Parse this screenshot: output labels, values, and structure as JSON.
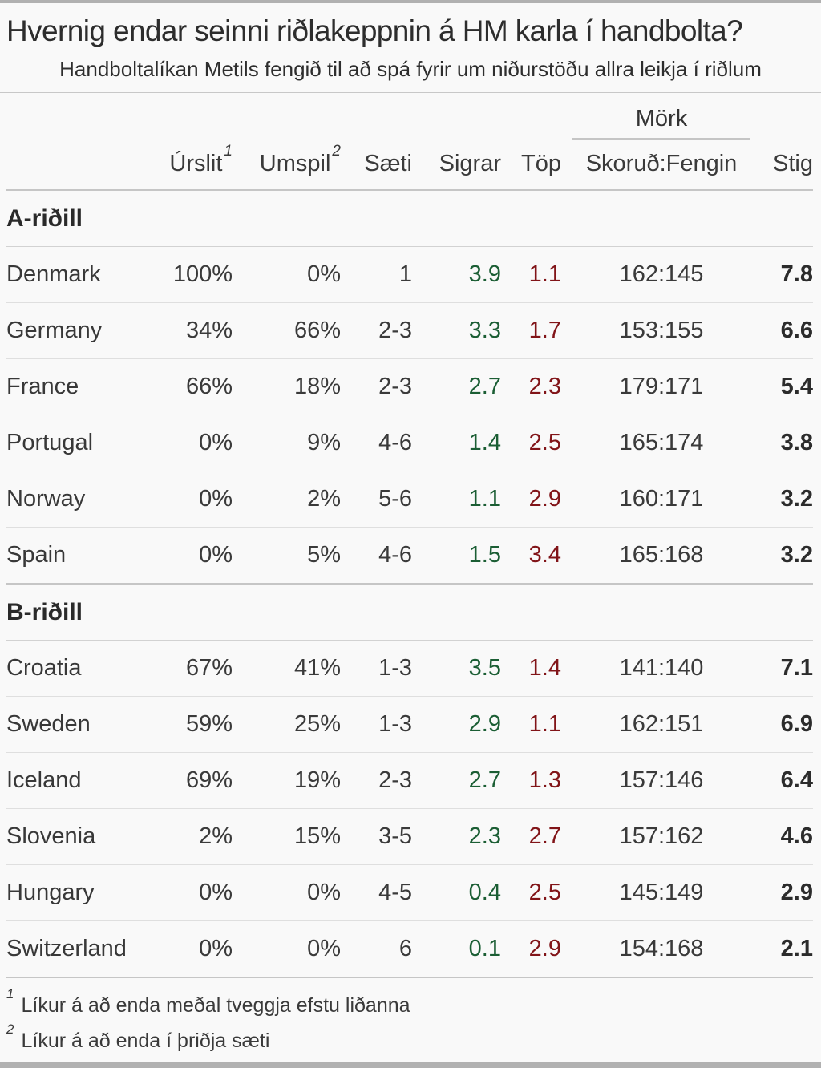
{
  "header": {
    "title": "Hvernig endar seinni riðlakeppnin á HM karla í handbolta?",
    "subtitle": "Handboltalíkan Metils fengið til að spá fyrir um niðurstöðu allra leikja í riðlum"
  },
  "chart_data": {
    "type": "table",
    "group_header": "Mörk",
    "columns": [
      {
        "label": ""
      },
      {
        "label": "Úrslit",
        "sup": "1"
      },
      {
        "label": "Umspil",
        "sup": "2"
      },
      {
        "label": "Sæti"
      },
      {
        "label": "Sigrar"
      },
      {
        "label": "Töp"
      },
      {
        "label": "Skoruð:Fengin"
      },
      {
        "label": "Stig"
      }
    ],
    "sections": [
      {
        "name": "A-riðill",
        "rows": [
          [
            "Denmark",
            "100%",
            "0%",
            "1",
            "3.9",
            "1.1",
            "162:145",
            "7.8"
          ],
          [
            "Germany",
            "34%",
            "66%",
            "2-3",
            "3.3",
            "1.7",
            "153:155",
            "6.6"
          ],
          [
            "France",
            "66%",
            "18%",
            "2-3",
            "2.7",
            "2.3",
            "179:171",
            "5.4"
          ],
          [
            "Portugal",
            "0%",
            "9%",
            "4-6",
            "1.4",
            "2.5",
            "165:174",
            "3.8"
          ],
          [
            "Norway",
            "0%",
            "2%",
            "5-6",
            "1.1",
            "2.9",
            "160:171",
            "3.2"
          ],
          [
            "Spain",
            "0%",
            "5%",
            "4-6",
            "1.5",
            "3.4",
            "165:168",
            "3.2"
          ]
        ]
      },
      {
        "name": "B-riðill",
        "rows": [
          [
            "Croatia",
            "67%",
            "41%",
            "1-3",
            "3.5",
            "1.4",
            "141:140",
            "7.1"
          ],
          [
            "Sweden",
            "59%",
            "25%",
            "1-3",
            "2.9",
            "1.1",
            "162:151",
            "6.9"
          ],
          [
            "Iceland",
            "69%",
            "19%",
            "2-3",
            "2.7",
            "1.3",
            "157:146",
            "6.4"
          ],
          [
            "Slovenia",
            "2%",
            "15%",
            "3-5",
            "2.3",
            "2.7",
            "157:162",
            "4.6"
          ],
          [
            "Hungary",
            "0%",
            "0%",
            "4-5",
            "0.4",
            "2.5",
            "145:149",
            "2.9"
          ],
          [
            "Switzerland",
            "0%",
            "0%",
            "6",
            "0.1",
            "2.9",
            "154:168",
            "2.1"
          ]
        ]
      }
    ]
  },
  "footnotes": [
    {
      "sup": "1",
      "text": "Líkur á að enda meðal tveggja efstu liðanna"
    },
    {
      "sup": "2",
      "text": "Líkur á að enda í þriðja sæti"
    }
  ],
  "colors": {
    "wins_green": "#1b5e34",
    "losses_red": "#811418",
    "edge_bar_gray": "#b1b1b1"
  }
}
